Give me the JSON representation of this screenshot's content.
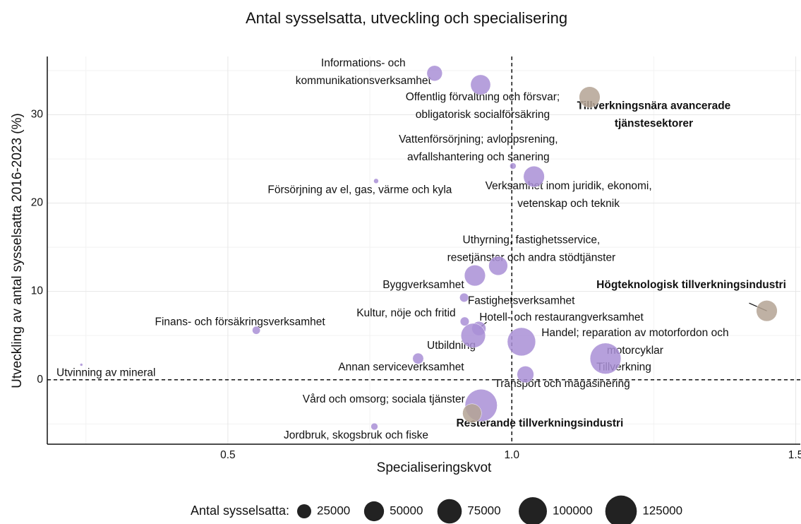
{
  "chart_data": {
    "type": "bubble",
    "title": "Antal sysselsatta, utveckling och specialisering",
    "x_label": "Specialiseringskvot",
    "y_label": "Utveckling av antal sysselsatta 2016-2023 (%)",
    "xlim": [
      0.182,
      1.508
    ],
    "ylim": [
      -7.3,
      36.6
    ],
    "xticks": [
      0.5,
      {
        "value": 1,
        "label": "1.0"
      },
      1.5
    ],
    "yticks": [
      0,
      10,
      20,
      30
    ],
    "grid": true,
    "ref_x": 1,
    "ref_y": 0,
    "series": [
      {
        "color": "#a98fd6",
        "labels": [
          "Informations- och\nkommunikationsverksamhet",
          "Offentlig förvaltning och försvar;\nobligatorisk socialförsäkring",
          "Vattenförsörjning; avloppsrening,\navfallshantering och sanering",
          "Verksamhet inom juridik, ekonomi,\nvetenskap och teknik",
          "Försörjning av el, gas, värme och kyla",
          "Uthyrning, fastighetsservice,\nresetjänster och andra stödtjänster",
          "Byggverksamhet",
          "Fastighetsverksamhet",
          "Kultur, nöje och fritid",
          "Hotell- och restaurangverksamhet",
          "Utbildning",
          "Finans- och försäkringsverksamhet",
          "Handel; reparation av motorfordon och\nmotorcyklar",
          "Tillverkning",
          "Annan serviceverksamhet",
          "Utvinning av mineral",
          "Transport och magasinering",
          "Vård och omsorg; sociala tjänster",
          "Jordbruk, skogsbruk och fiske"
        ],
        "x": [
          0.864,
          0.945,
          1.002,
          1.039,
          0.761,
          0.976,
          0.935,
          0.916,
          0.917,
          0.942,
          0.932,
          0.55,
          1.017,
          1.165,
          0.835,
          0.242,
          1.024,
          0.946,
          0.758
        ],
        "values": [
          34.7,
          33.4,
          24.2,
          23.0,
          22.5,
          12.9,
          11.8,
          9.3,
          6.6,
          5.8,
          5.0,
          5.6,
          4.3,
          2.4,
          2.4,
          1.7,
          0.6,
          -2.9,
          -5.3
        ],
        "sizes": [
          30000,
          50000,
          5000,
          55000,
          3000,
          45000,
          55000,
          10000,
          10000,
          25000,
          75000,
          8000,
          100000,
          120000,
          15000,
          1000,
          35000,
          130000,
          6000
        ]
      },
      {
        "color": "#b4a394",
        "labels": [
          "Tillverkningsnära avancerade\ntjänstesektorer",
          "Högteknologisk tillverkningsindustri",
          "Resterande tillverkningsindustri"
        ],
        "x": [
          1.137,
          1.449,
          0.93
        ],
        "values": [
          32.0,
          7.8,
          -3.8
        ],
        "sizes": [
          55000,
          55000,
          45000
        ]
      }
    ],
    "size_legend": {
      "title": "Antal sysselsatta:",
      "values": [
        25000,
        50000,
        75000,
        100000,
        125000
      ]
    }
  }
}
